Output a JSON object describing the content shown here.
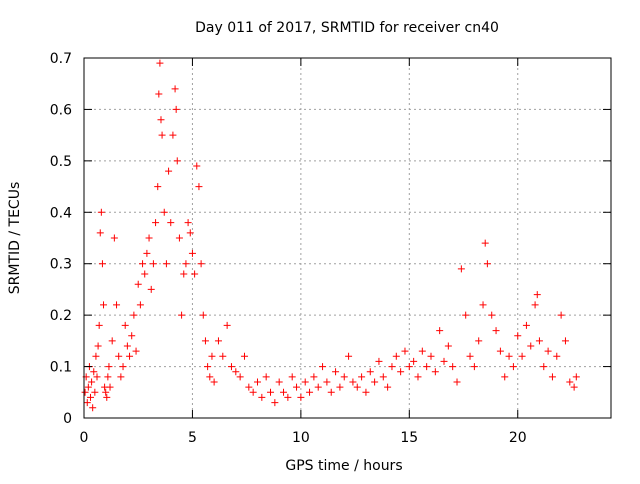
{
  "chart_data": {
    "type": "scatter",
    "title": "Day 011 of 2017, SRMTID for receiver cn40",
    "xlabel": "GPS time / hours",
    "ylabel": "SRMTID / TECUs",
    "xlim": [
      0,
      24.3
    ],
    "ylim": [
      0,
      0.7
    ],
    "xticks": [
      0,
      5,
      10,
      15,
      20
    ],
    "xtick_labels": [
      "0",
      "5",
      "10",
      "15",
      "20"
    ],
    "yticks": [
      0,
      0.1,
      0.2,
      0.3,
      0.4,
      0.5,
      0.6,
      0.7
    ],
    "ytick_labels": [
      "0",
      "0.1",
      "0.2",
      "0.3",
      "0.4",
      "0.5",
      "0.6",
      "0.7"
    ],
    "grid": true,
    "marker": "+",
    "marker_color": "#ff0000",
    "series": [
      {
        "name": "SRMTID",
        "points": [
          [
            0.05,
            0.05
          ],
          [
            0.1,
            0.08
          ],
          [
            0.15,
            0.03
          ],
          [
            0.2,
            0.06
          ],
          [
            0.25,
            0.1
          ],
          [
            0.3,
            0.04
          ],
          [
            0.35,
            0.07
          ],
          [
            0.4,
            0.02
          ],
          [
            0.45,
            0.09
          ],
          [
            0.5,
            0.05
          ],
          [
            0.55,
            0.12
          ],
          [
            0.6,
            0.08
          ],
          [
            0.65,
            0.14
          ],
          [
            0.7,
            0.18
          ],
          [
            0.75,
            0.36
          ],
          [
            0.8,
            0.4
          ],
          [
            0.85,
            0.3
          ],
          [
            0.9,
            0.22
          ],
          [
            0.95,
            0.06
          ],
          [
            1.0,
            0.05
          ],
          [
            1.05,
            0.04
          ],
          [
            1.1,
            0.08
          ],
          [
            1.15,
            0.1
          ],
          [
            1.2,
            0.06
          ],
          [
            1.3,
            0.15
          ],
          [
            1.4,
            0.35
          ],
          [
            1.5,
            0.22
          ],
          [
            1.6,
            0.12
          ],
          [
            1.7,
            0.08
          ],
          [
            1.8,
            0.1
          ],
          [
            1.9,
            0.18
          ],
          [
            2.0,
            0.14
          ],
          [
            2.1,
            0.12
          ],
          [
            2.2,
            0.16
          ],
          [
            2.3,
            0.2
          ],
          [
            2.4,
            0.13
          ],
          [
            2.5,
            0.26
          ],
          [
            2.6,
            0.22
          ],
          [
            2.7,
            0.3
          ],
          [
            2.8,
            0.28
          ],
          [
            2.9,
            0.32
          ],
          [
            3.0,
            0.35
          ],
          [
            3.1,
            0.25
          ],
          [
            3.2,
            0.3
          ],
          [
            3.3,
            0.38
          ],
          [
            3.4,
            0.45
          ],
          [
            3.45,
            0.63
          ],
          [
            3.5,
            0.69
          ],
          [
            3.55,
            0.58
          ],
          [
            3.6,
            0.55
          ],
          [
            3.7,
            0.4
          ],
          [
            3.8,
            0.3
          ],
          [
            3.9,
            0.48
          ],
          [
            4.0,
            0.38
          ],
          [
            4.1,
            0.55
          ],
          [
            4.2,
            0.64
          ],
          [
            4.25,
            0.6
          ],
          [
            4.3,
            0.5
          ],
          [
            4.4,
            0.35
          ],
          [
            4.5,
            0.2
          ],
          [
            4.6,
            0.28
          ],
          [
            4.7,
            0.3
          ],
          [
            4.8,
            0.38
          ],
          [
            4.9,
            0.36
          ],
          [
            5.0,
            0.32
          ],
          [
            5.1,
            0.28
          ],
          [
            5.2,
            0.49
          ],
          [
            5.3,
            0.45
          ],
          [
            5.4,
            0.3
          ],
          [
            5.5,
            0.2
          ],
          [
            5.6,
            0.15
          ],
          [
            5.7,
            0.1
          ],
          [
            5.8,
            0.08
          ],
          [
            5.9,
            0.12
          ],
          [
            6.0,
            0.07
          ],
          [
            6.2,
            0.15
          ],
          [
            6.4,
            0.12
          ],
          [
            6.6,
            0.18
          ],
          [
            6.8,
            0.1
          ],
          [
            7.0,
            0.09
          ],
          [
            7.2,
            0.08
          ],
          [
            7.4,
            0.12
          ],
          [
            7.6,
            0.06
          ],
          [
            7.8,
            0.05
          ],
          [
            8.0,
            0.07
          ],
          [
            8.2,
            0.04
          ],
          [
            8.4,
            0.08
          ],
          [
            8.6,
            0.05
          ],
          [
            8.8,
            0.03
          ],
          [
            9.0,
            0.07
          ],
          [
            9.2,
            0.05
          ],
          [
            9.4,
            0.04
          ],
          [
            9.6,
            0.08
          ],
          [
            9.8,
            0.06
          ],
          [
            10.0,
            0.04
          ],
          [
            10.2,
            0.07
          ],
          [
            10.4,
            0.05
          ],
          [
            10.6,
            0.08
          ],
          [
            10.8,
            0.06
          ],
          [
            11.0,
            0.1
          ],
          [
            11.2,
            0.07
          ],
          [
            11.4,
            0.05
          ],
          [
            11.6,
            0.09
          ],
          [
            11.8,
            0.06
          ],
          [
            12.0,
            0.08
          ],
          [
            12.2,
            0.12
          ],
          [
            12.4,
            0.07
          ],
          [
            12.6,
            0.06
          ],
          [
            12.8,
            0.08
          ],
          [
            13.0,
            0.05
          ],
          [
            13.2,
            0.09
          ],
          [
            13.4,
            0.07
          ],
          [
            13.6,
            0.11
          ],
          [
            13.8,
            0.08
          ],
          [
            14.0,
            0.06
          ],
          [
            14.2,
            0.1
          ],
          [
            14.4,
            0.12
          ],
          [
            14.6,
            0.09
          ],
          [
            14.8,
            0.13
          ],
          [
            15.0,
            0.1
          ],
          [
            15.2,
            0.11
          ],
          [
            15.4,
            0.08
          ],
          [
            15.6,
            0.13
          ],
          [
            15.8,
            0.1
          ],
          [
            16.0,
            0.12
          ],
          [
            16.2,
            0.09
          ],
          [
            16.4,
            0.17
          ],
          [
            16.6,
            0.11
          ],
          [
            16.8,
            0.14
          ],
          [
            17.0,
            0.1
          ],
          [
            17.2,
            0.07
          ],
          [
            17.4,
            0.29
          ],
          [
            17.6,
            0.2
          ],
          [
            17.8,
            0.12
          ],
          [
            18.0,
            0.1
          ],
          [
            18.2,
            0.15
          ],
          [
            18.4,
            0.22
          ],
          [
            18.5,
            0.34
          ],
          [
            18.6,
            0.3
          ],
          [
            18.8,
            0.2
          ],
          [
            19.0,
            0.17
          ],
          [
            19.2,
            0.13
          ],
          [
            19.4,
            0.08
          ],
          [
            19.6,
            0.12
          ],
          [
            19.8,
            0.1
          ],
          [
            20.0,
            0.16
          ],
          [
            20.2,
            0.12
          ],
          [
            20.4,
            0.18
          ],
          [
            20.6,
            0.14
          ],
          [
            20.8,
            0.22
          ],
          [
            20.9,
            0.24
          ],
          [
            21.0,
            0.15
          ],
          [
            21.2,
            0.1
          ],
          [
            21.4,
            0.13
          ],
          [
            21.6,
            0.08
          ],
          [
            21.8,
            0.12
          ],
          [
            22.0,
            0.2
          ],
          [
            22.2,
            0.15
          ],
          [
            22.4,
            0.07
          ],
          [
            22.6,
            0.06
          ],
          [
            22.7,
            0.08
          ]
        ]
      }
    ]
  }
}
